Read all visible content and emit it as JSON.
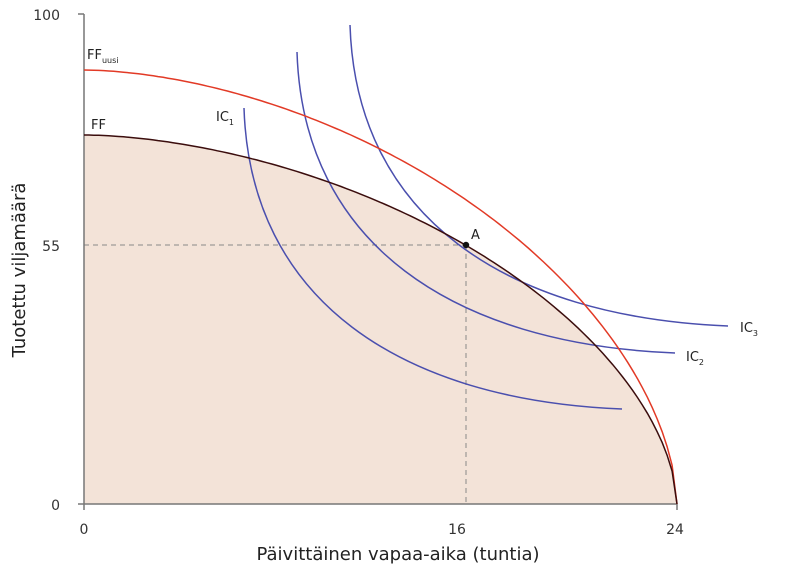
{
  "chart_data": {
    "type": "line",
    "xlabel": "Päivittäinen vapaa-aika (tuntia)",
    "ylabel": "Tuotettu viljamäärä",
    "x_ticks": [
      "0",
      "16",
      "24"
    ],
    "y_ticks": [
      "0",
      "55",
      "100"
    ],
    "xlim": [
      0,
      24
    ],
    "ylim": [
      0,
      100
    ],
    "grid": false,
    "curves": {
      "ff": {
        "label": "FF",
        "x_intercept": 24,
        "color": "#3b0d0d",
        "fill": "#f3e3d8"
      },
      "ff_new": {
        "label": "FF",
        "label_sub": "uusi",
        "x_intercept": 24,
        "color": "#e23a26"
      },
      "ic1": {
        "label": "IC",
        "label_sub": "1",
        "color": "#4a4fae"
      },
      "ic2": {
        "label": "IC",
        "label_sub": "2",
        "color": "#4a4fae"
      },
      "ic3": {
        "label": "IC",
        "label_sub": "3",
        "color": "#4a4fae"
      }
    },
    "point_a": {
      "label": "A",
      "x": 16,
      "y": 55
    }
  }
}
